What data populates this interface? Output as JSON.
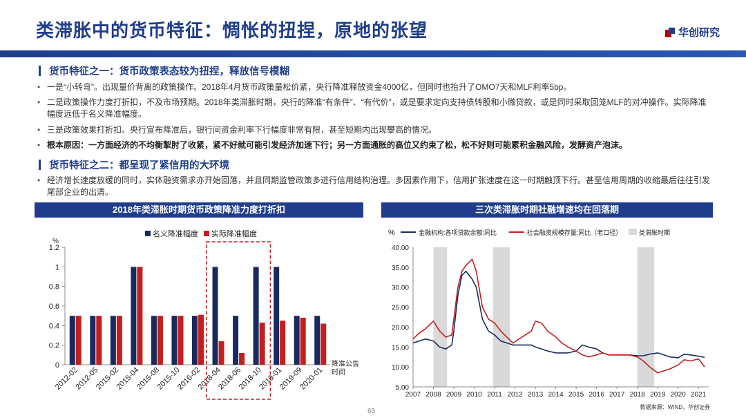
{
  "header": {
    "title": "类滞胀中的货币特征：惆怅的扭捏，原地的张望",
    "logo_text": "华创研究"
  },
  "section1": {
    "heading": "货币特征之一：货币政策表态较为扭捏，释放信号模糊",
    "bullets": [
      {
        "bold": "",
        "text": "一是“小转弯”。出现量价背离的政策操作。2018年4月货币政策量松价紧，央行降准释放资金4000亿，但同时也抬升了OMO7天和MLF利率5bp。"
      },
      {
        "bold": "",
        "text": "二是政策操作力度打折扣，不及市场预期。2018年类滞胀时期，央行的降准“有条件”、“有代价”，或是要求定向支持债转股和小微贷款，或是同时采取回笼MLF的对冲操作。实际降准幅度远低于名义降准幅度。"
      },
      {
        "bold": "",
        "text": "三是政策效果打折扣。央行宣布降准后，银行间资金利率下行幅度非常有限，甚至短期内出现攀高的情况。"
      },
      {
        "bold": "根本原因：一方面经济的不均衡掣肘了收紧，紧不好就可能引发经济加速下行；另一方面通胀的高位又约束了松，松不好则可能累积金融风险，发酵资产泡沫。",
        "text": ""
      }
    ]
  },
  "section2": {
    "heading": "货币特征之二：都呈现了紧信用的大环境",
    "bullets": [
      {
        "bold": "",
        "text": "经济增长速度放缓的同时，实体融资需求亦开始回落，并且同期监管政策多进行信用结构治理。多因素作用下，信用扩张速度在这一时期触顶下行。甚至信用周期的收缩最后往往引发尾部企业的出清。"
      }
    ]
  },
  "left_panel": {
    "title": "2018年类滞胀时期货币政策降准力度打折扣"
  },
  "right_panel": {
    "title": "三次类滞胀时期社融增速均在回落期"
  },
  "chart_data": [
    {
      "type": "bar",
      "title": "2018年类滞胀时期货币政策降准力度打折扣",
      "ylabel": "%",
      "xlabel": "降准公告时间",
      "ylim": [
        0,
        1.2
      ],
      "yticks": [
        "0",
        "0.2",
        "0.4",
        "0.6",
        "0.8",
        "1",
        "1.2"
      ],
      "categories": [
        "2012-02",
        "2012-05",
        "2015-02",
        "2015-04",
        "2015-08",
        "2015-10",
        "2016-02",
        "2018-04",
        "2018-06",
        "2018-10",
        "2019-01",
        "2019-09",
        "2020-01"
      ],
      "series": [
        {
          "name": "名义降准幅度",
          "color": "#1a2a5e",
          "values": [
            0.5,
            0.5,
            0.5,
            1.0,
            0.5,
            0.5,
            0.5,
            1.0,
            0.5,
            1.0,
            1.0,
            0.5,
            0.5
          ]
        },
        {
          "name": "实际降准幅度",
          "color": "#c41e1e",
          "values": [
            0.5,
            0.5,
            0.5,
            1.0,
            0.5,
            0.5,
            0.51,
            0.24,
            0.12,
            0.43,
            0.45,
            0.48,
            0.42
          ]
        }
      ],
      "highlight_categories": [
        "2018-04",
        "2018-06",
        "2018-10"
      ],
      "legend_position": "top-center"
    },
    {
      "type": "line",
      "title": "三次类滞胀时期社融增速均在回落期",
      "ylabel": "%",
      "ylim": [
        5,
        40
      ],
      "yticks": [
        "5.00",
        "10.00",
        "15.00",
        "20.00",
        "25.00",
        "30.00",
        "35.00",
        "40.00"
      ],
      "xticks": [
        "2007",
        "2008",
        "2009",
        "2010",
        "2011",
        "2012",
        "2013",
        "2014",
        "2015",
        "2016",
        "2017",
        "2018",
        "2019",
        "2020",
        "2021"
      ],
      "xlim": [
        2007,
        2021.5
      ],
      "shaded_periods": [
        [
          2008.0,
          2008.67
        ],
        [
          2010.92,
          2011.75
        ],
        [
          2018.0,
          2018.83
        ]
      ],
      "shaded_label": "类滞胀时期",
      "series": [
        {
          "name": "金融机构:各项贷款余额:同比",
          "color": "#1a2a5e",
          "x": [
            2007.0,
            2007.3,
            2007.6,
            2008.0,
            2008.3,
            2008.6,
            2008.9,
            2009.0,
            2009.2,
            2009.4,
            2009.6,
            2009.9,
            2010.1,
            2010.4,
            2010.7,
            2011.0,
            2011.3,
            2011.6,
            2011.9,
            2012.2,
            2012.5,
            2012.8,
            2013.0,
            2013.3,
            2013.6,
            2014.0,
            2014.3,
            2014.6,
            2015.0,
            2015.3,
            2015.6,
            2016.0,
            2016.3,
            2016.6,
            2017.0,
            2017.3,
            2017.6,
            2018.0,
            2018.3,
            2018.6,
            2019.0,
            2019.3,
            2019.6,
            2020.0,
            2020.3,
            2020.6,
            2021.0,
            2021.3
          ],
          "y": [
            16.0,
            16.5,
            17.0,
            16.5,
            15.0,
            14.5,
            15.5,
            19.0,
            28.0,
            33.0,
            34.0,
            32.0,
            30.0,
            22.0,
            19.0,
            18.0,
            16.5,
            16.0,
            15.5,
            15.5,
            15.5,
            15.5,
            15.0,
            14.5,
            14.0,
            13.5,
            13.5,
            13.5,
            14.0,
            15.5,
            15.0,
            14.5,
            13.5,
            13.0,
            13.0,
            13.0,
            13.0,
            12.8,
            12.8,
            13.2,
            13.5,
            13.0,
            12.5,
            12.3,
            13.2,
            13.0,
            12.7,
            12.4
          ]
        },
        {
          "name": "社会融资规模存量:同比（老口径）",
          "color": "#c41e1e",
          "x": [
            2007.0,
            2007.3,
            2007.6,
            2008.0,
            2008.3,
            2008.6,
            2008.9,
            2009.0,
            2009.2,
            2009.4,
            2009.6,
            2009.9,
            2010.1,
            2010.4,
            2010.7,
            2011.0,
            2011.3,
            2011.6,
            2011.9,
            2012.2,
            2012.5,
            2012.8,
            2013.0,
            2013.3,
            2013.6,
            2014.0,
            2014.3,
            2014.6,
            2015.0,
            2015.3,
            2015.6,
            2016.0,
            2016.3,
            2016.6,
            2017.0,
            2017.3,
            2017.6,
            2018.0,
            2018.3,
            2018.6,
            2019.0,
            2019.3,
            2019.6,
            2020.0,
            2020.3,
            2020.6,
            2021.0,
            2021.3
          ],
          "y": [
            17.0,
            18.5,
            19.5,
            21.5,
            19.0,
            17.5,
            18.0,
            22.0,
            30.0,
            34.0,
            35.5,
            37.0,
            34.0,
            25.0,
            22.0,
            21.0,
            19.0,
            17.5,
            16.0,
            17.0,
            18.0,
            19.0,
            21.5,
            21.0,
            19.0,
            17.5,
            16.0,
            15.0,
            14.0,
            13.0,
            12.5,
            13.0,
            13.5,
            13.0,
            13.0,
            13.0,
            13.0,
            12.5,
            11.5,
            10.0,
            8.5,
            9.0,
            9.5,
            10.5,
            11.8,
            11.5,
            12.0,
            10.0
          ]
        }
      ],
      "source": "数据来源：WIND，华创证券"
    }
  ],
  "footer": {
    "source": "数据来源：WIND，华创证券",
    "page": "63"
  }
}
